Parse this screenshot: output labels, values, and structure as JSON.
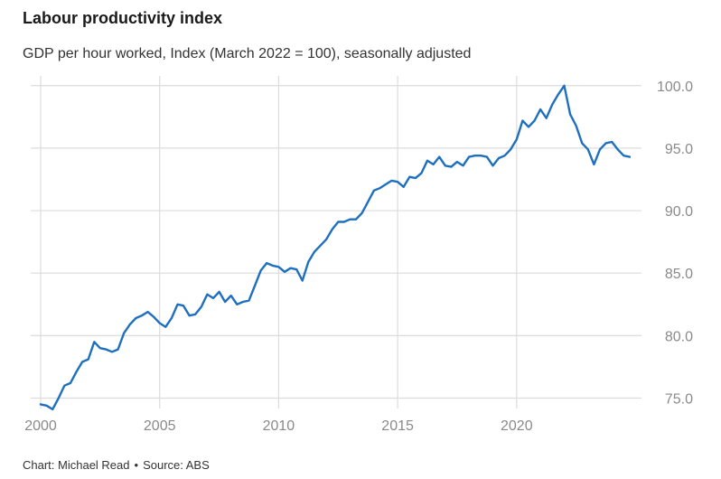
{
  "header": {
    "title": "Labour productivity index",
    "subtitle": "GDP per hour worked, Index (March 2022 = 100), seasonally adjusted"
  },
  "footer": {
    "credit": "Chart: Michael Read",
    "separator": "•",
    "source": "Source: ABS"
  },
  "colors": {
    "line": "#1f6fc0",
    "grid": "#dcdcdc",
    "axis_text": "#8a8a8a"
  },
  "chart_data": {
    "type": "line",
    "title": "Labour productivity index",
    "subtitle": "GDP per hour worked, Index (March 2022 = 100), seasonally adjusted",
    "xlabel": "",
    "ylabel": "",
    "xlim": [
      2000,
      2025.2
    ],
    "ylim": [
      74.5,
      100.5
    ],
    "x_ticks": [
      2000,
      2005,
      2010,
      2015,
      2020
    ],
    "x_tick_labels": [
      "2000",
      "2005",
      "2010",
      "2015",
      "2020"
    ],
    "y_ticks": [
      75,
      80,
      85,
      90,
      95,
      100
    ],
    "y_tick_labels": [
      "75.0",
      "80.0",
      "85.0",
      "90.0",
      "95.0",
      "100.0"
    ],
    "y_axis_position": "right",
    "grid": true,
    "series": [
      {
        "name": "Labour productivity index",
        "x": [
          2000.0,
          2000.25,
          2000.5,
          2000.75,
          2001.0,
          2001.25,
          2001.5,
          2001.75,
          2002.0,
          2002.25,
          2002.5,
          2002.75,
          2003.0,
          2003.25,
          2003.5,
          2003.75,
          2004.0,
          2004.25,
          2004.5,
          2004.75,
          2005.0,
          2005.25,
          2005.5,
          2005.75,
          2006.0,
          2006.25,
          2006.5,
          2006.75,
          2007.0,
          2007.25,
          2007.5,
          2007.75,
          2008.0,
          2008.25,
          2008.5,
          2008.75,
          2009.0,
          2009.25,
          2009.5,
          2009.75,
          2010.0,
          2010.25,
          2010.5,
          2010.75,
          2011.0,
          2011.25,
          2011.5,
          2011.75,
          2012.0,
          2012.25,
          2012.5,
          2012.75,
          2013.0,
          2013.25,
          2013.5,
          2013.75,
          2014.0,
          2014.25,
          2014.5,
          2014.75,
          2015.0,
          2015.25,
          2015.5,
          2015.75,
          2016.0,
          2016.25,
          2016.5,
          2016.75,
          2017.0,
          2017.25,
          2017.5,
          2017.75,
          2018.0,
          2018.25,
          2018.5,
          2018.75,
          2019.0,
          2019.25,
          2019.5,
          2019.75,
          2020.0,
          2020.25,
          2020.5,
          2020.75,
          2021.0,
          2021.25,
          2021.5,
          2021.75,
          2022.0,
          2022.25,
          2022.5,
          2022.75,
          2023.0,
          2023.25,
          2023.5,
          2023.75,
          2024.0,
          2024.25,
          2024.5,
          2024.75
        ],
        "values": [
          74.5,
          74.4,
          74.1,
          75.0,
          76.0,
          76.2,
          77.1,
          77.9,
          78.1,
          79.5,
          79.0,
          78.9,
          78.7,
          78.9,
          80.2,
          80.9,
          81.4,
          81.6,
          81.9,
          81.5,
          81.0,
          80.7,
          81.4,
          82.5,
          82.4,
          81.6,
          81.7,
          82.3,
          83.3,
          83.0,
          83.5,
          82.7,
          83.2,
          82.5,
          82.7,
          82.8,
          84.0,
          85.2,
          85.8,
          85.6,
          85.5,
          85.1,
          85.4,
          85.3,
          84.4,
          85.9,
          86.7,
          87.2,
          87.7,
          88.5,
          89.1,
          89.1,
          89.3,
          89.3,
          89.8,
          90.7,
          91.6,
          91.8,
          92.1,
          92.4,
          92.3,
          91.9,
          92.7,
          92.6,
          93.0,
          94.0,
          93.7,
          94.3,
          93.6,
          93.5,
          93.9,
          93.6,
          94.3,
          94.4,
          94.4,
          94.3,
          93.6,
          94.2,
          94.4,
          94.9,
          95.7,
          97.2,
          96.7,
          97.2,
          98.1,
          97.4,
          98.5,
          99.3,
          100.0,
          97.7,
          96.8,
          95.4,
          94.9,
          93.7,
          94.9,
          95.4,
          95.5,
          94.9,
          94.4,
          94.3
        ]
      }
    ]
  }
}
